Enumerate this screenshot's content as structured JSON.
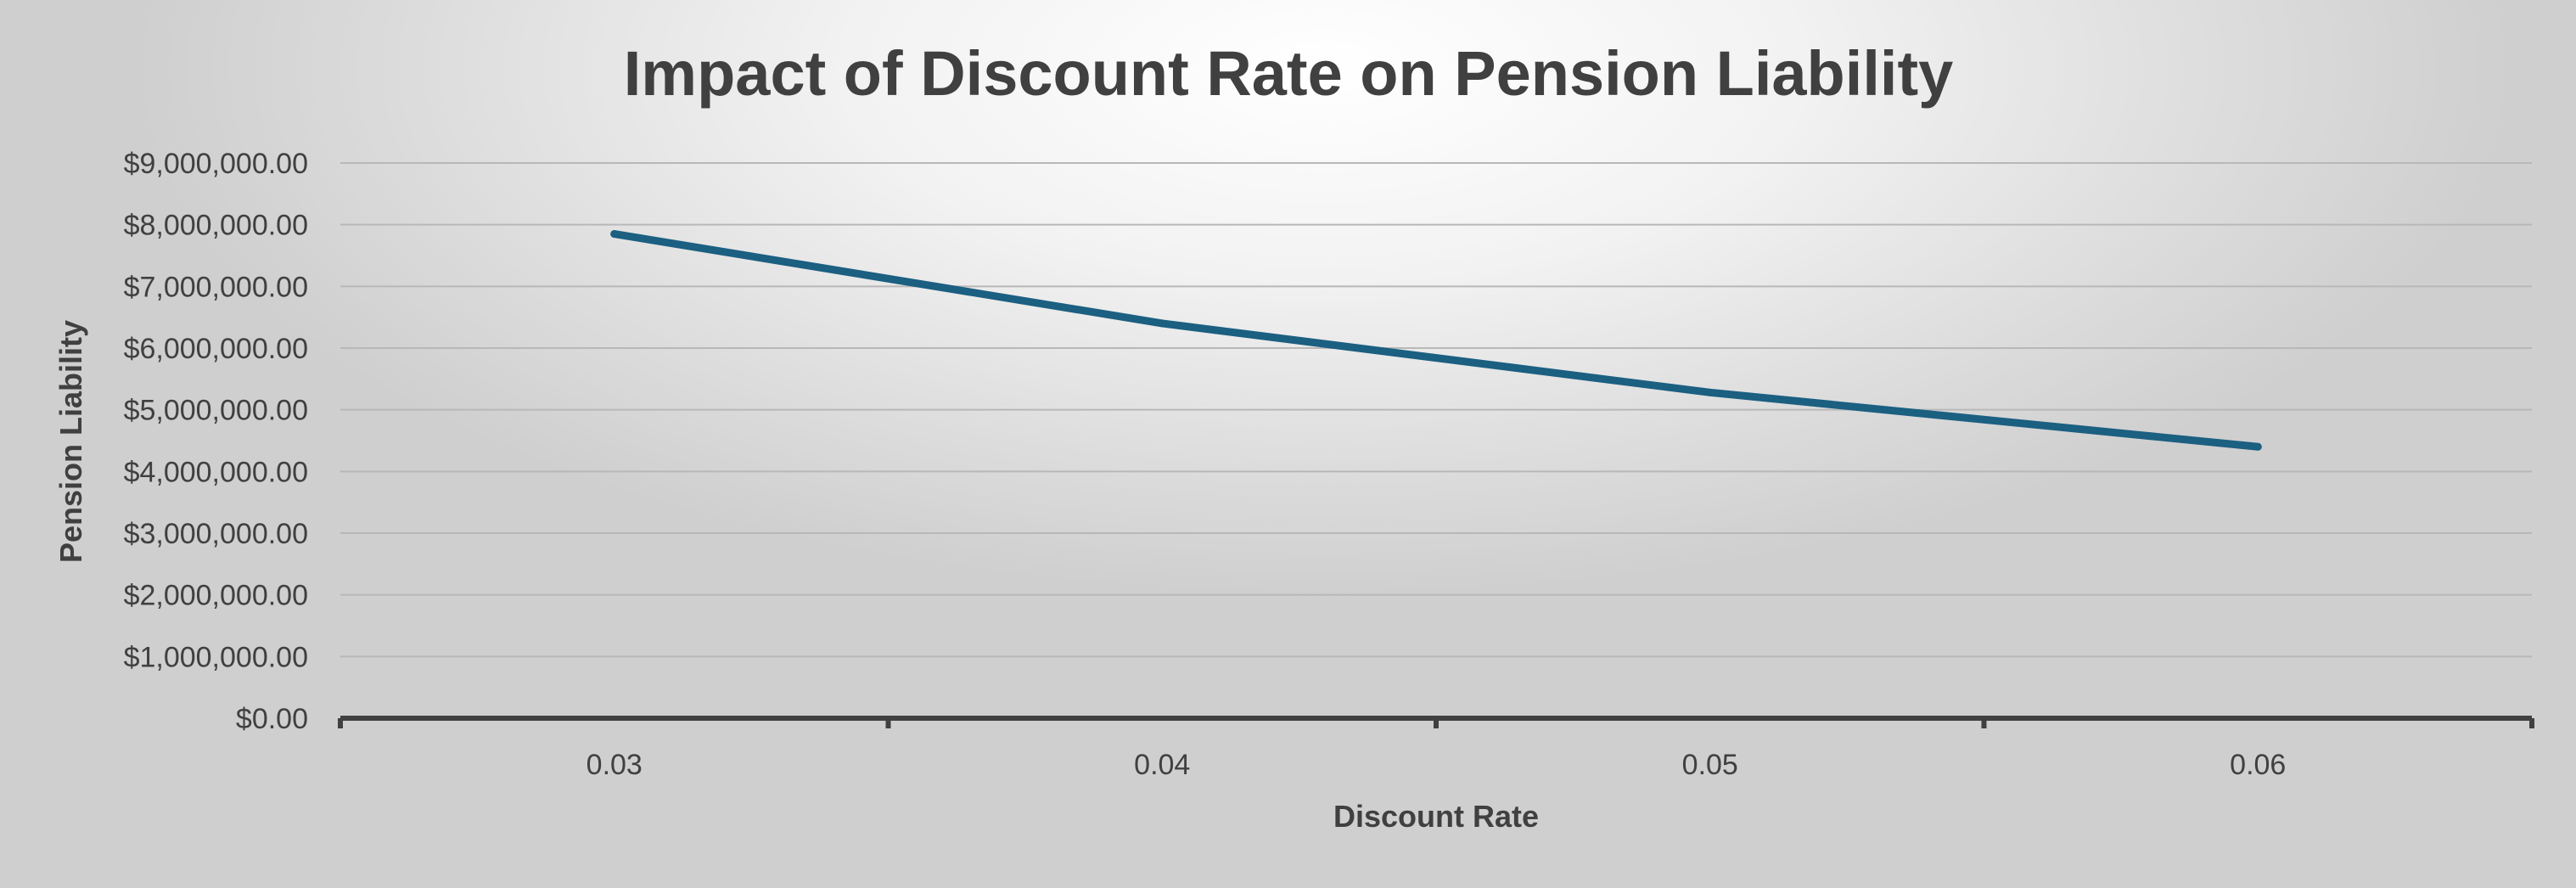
{
  "chart_data": {
    "type": "line",
    "title": "Impact of Discount Rate on Pension Liability",
    "xlabel": "Discount Rate",
    "ylabel": "Pension Liability",
    "categories": [
      "0.03",
      "0.04",
      "0.05",
      "0.06"
    ],
    "y_tick_labels": [
      "$0.00",
      "$1,000,000.00",
      "$2,000,000.00",
      "$3,000,000.00",
      "$4,000,000.00",
      "$5,000,000.00",
      "$6,000,000.00",
      "$7,000,000.00",
      "$8,000,000.00",
      "$9,000,000.00"
    ],
    "ylim": [
      0,
      9000000
    ],
    "y_step": 1000000,
    "series": [
      {
        "values": [
          7850000,
          6400000,
          5280000,
          4400000
        ]
      }
    ],
    "grid": true,
    "legend": "none",
    "colors": {
      "line": "#1b5f81",
      "gridline": "#b8b8b8",
      "axis": "#404040",
      "text": "#404040"
    }
  }
}
